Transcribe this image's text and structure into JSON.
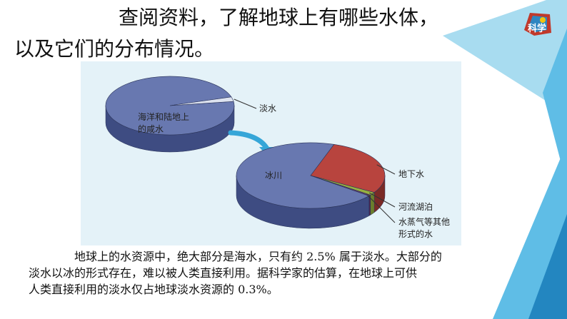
{
  "slide": {
    "title_line1": "查阅资料，了解地球上有哪些水体，",
    "title_line2": "以及它们的分布情况。",
    "paragraph_lines": [
      "地球上的水资源中，绝大部分是海水，只有约 2.5% 属于淡水。大部分的",
      "淡水以冰的形式存在，难以被人类直接利用。据科学家的估算，在地球上可供",
      "人类直接利用的淡水仅占地球淡水资源的 0.3%。"
    ],
    "logo_text": "科学"
  },
  "colors": {
    "pie_body": "#6878b0",
    "pie_side": "#3e4c82",
    "groundwater": "#b8443e",
    "groundwater_side": "#7a2a26",
    "lakes_rivers": "#98b040",
    "vapor_other": "#6a3a70",
    "fresh_slice": "#dde3f0",
    "arrow": "#36a6d8",
    "panel_bg": "#e4f2f8",
    "accent_light": "#a8dcf0",
    "accent_mid": "#5fbde6",
    "accent_dark": "#2386c0"
  },
  "chart_data": [
    {
      "type": "pie",
      "title": "",
      "slices": [
        {
          "label": "海洋和陆地上的咸水",
          "value": 97.5
        },
        {
          "label": "淡水",
          "value": 2.5
        }
      ]
    },
    {
      "type": "pie",
      "title": "",
      "slices": [
        {
          "label": "冰川",
          "value": 69.5
        },
        {
          "label": "地下水",
          "value": 28.5
        },
        {
          "label": "河流湖泊",
          "value": 1.5
        },
        {
          "label": "水蒸气等其他形式的水",
          "value": 0.5
        }
      ]
    }
  ]
}
